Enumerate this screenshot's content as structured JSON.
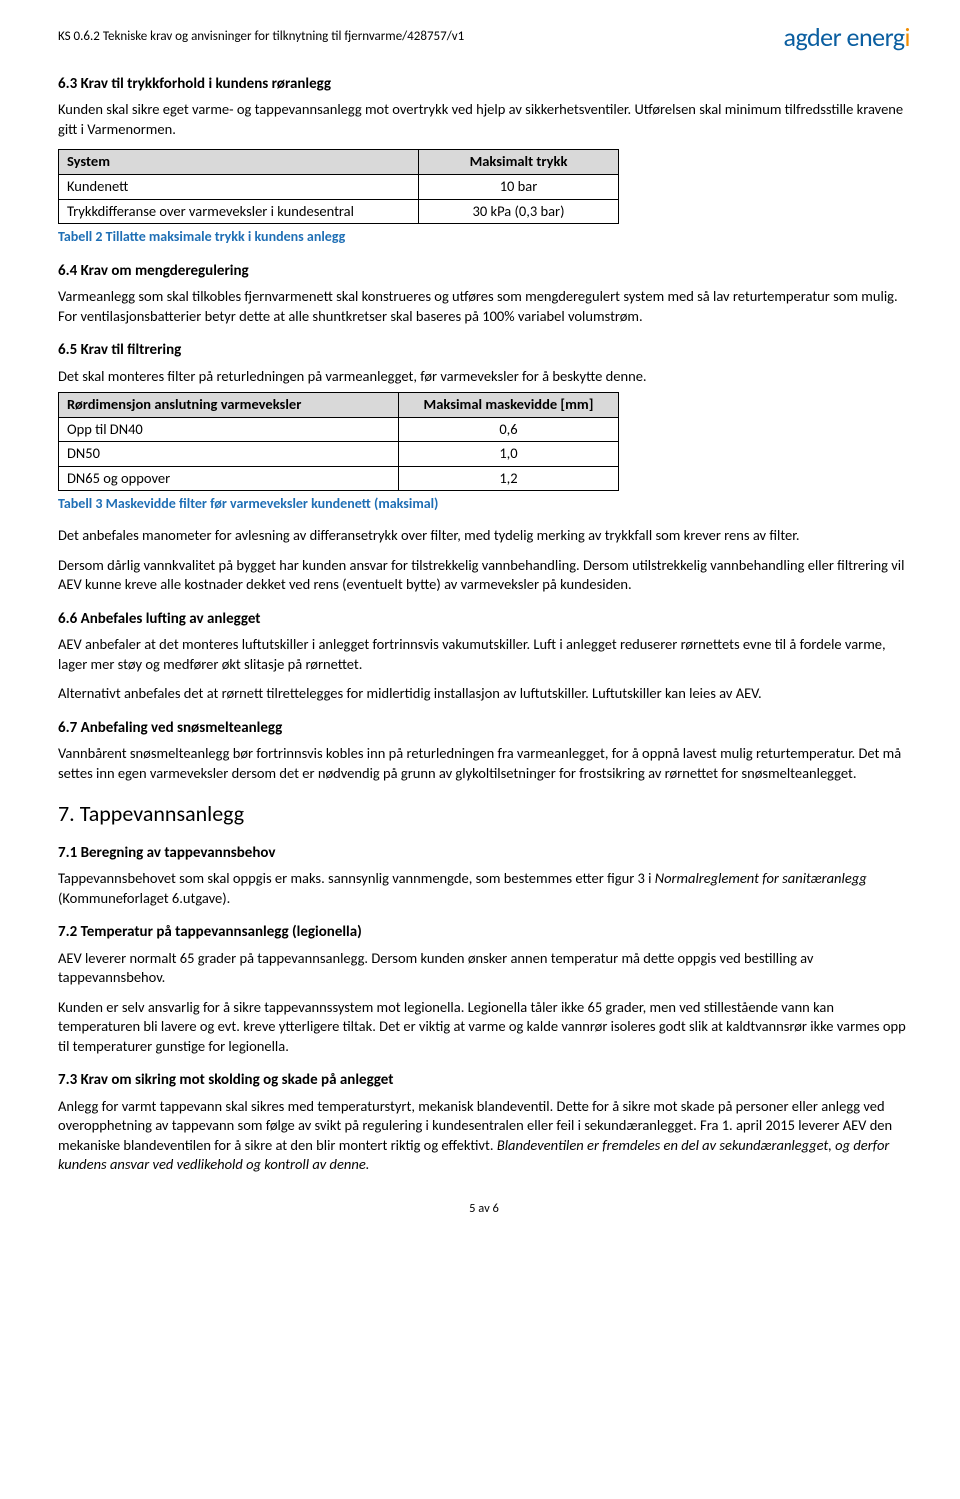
{
  "header": {
    "doc_ref": "KS 0.6.2 Tekniske krav og anvisninger for tilknytning til fjernvarme/428757/v1",
    "logo_part1": "agder",
    "logo_part2": " energ",
    "logo_accent": "i"
  },
  "s63": {
    "title": "6.3 Krav til trykkforhold i kundens røranlegg",
    "p1": "Kunden skal sikre eget varme- og tappevannsanlegg mot overtrykk ved hjelp av sikkerhetsventiler. Utførelsen skal minimum tilfredsstille kravene gitt i Varmenormen.",
    "table": {
      "h1": "System",
      "h2": "Maksimalt trykk",
      "r1c1": "Kundenett",
      "r1c2": "10 bar",
      "r2c1": "Trykkdifferanse over varmeveksler i kundesentral",
      "r2c2": "30 kPa (0,3 bar)"
    },
    "caption": "Tabell 2 Tillatte maksimale trykk i kundens anlegg"
  },
  "s64": {
    "title": "6.4 Krav om mengderegulering",
    "p1": "Varmeanlegg som skal tilkobles fjernvarmenett skal konstrueres og utføres som mengderegulert system med så lav returtemperatur som mulig. For ventilasjonsbatterier betyr dette at alle shuntkretser skal baseres på 100% variabel volumstrøm."
  },
  "s65": {
    "title": "6.5 Krav til filtrering",
    "p1": "Det skal monteres filter på returledningen på varmeanlegget, før varmeveksler for å beskytte denne.",
    "table": {
      "h1": "Rørdimensjon anslutning varmeveksler",
      "h2": "Maksimal maskevidde [mm]",
      "r1c1": "Opp til DN40",
      "r1c2": "0,6",
      "r2c1": "DN50",
      "r2c2": "1,0",
      "r3c1": "DN65 og oppover",
      "r3c2": "1,2"
    },
    "caption": "Tabell 3 Maskevidde filter før varmeveksler kundenett (maksimal)",
    "p2": "Det anbefales manometer for avlesning av differansetrykk over filter, med tydelig merking av trykkfall som krever rens av filter.",
    "p3": "Dersom dårlig vannkvalitet på bygget har kunden ansvar for tilstrekkelig vannbehandling. Dersom utilstrekkelig vannbehandling eller filtrering vil AEV kunne kreve alle kostnader dekket ved rens (eventuelt bytte) av varmeveksler på kundesiden."
  },
  "s66": {
    "title": "6.6 Anbefales lufting av anlegget",
    "p1": "AEV anbefaler at det monteres luftutskiller i anlegget fortrinnsvis vakumutskiller. Luft i anlegget reduserer rørnettets evne til å fordele varme, lager mer støy og medfører økt slitasje på rørnettet.",
    "p2": "Alternativt anbefales det at rørnett tilrettelegges for midlertidig installasjon av luftutskiller. Luftutskiller kan leies av AEV."
  },
  "s67": {
    "title": "6.7 Anbefaling ved snøsmelteanlegg",
    "p1": "Vannbårent snøsmelteanlegg bør fortrinnsvis kobles inn på returledningen fra varmeanlegget, for å oppnå lavest mulig returtemperatur. Det må settes inn egen varmeveksler dersom det er nødvendig på grunn av glykoltilsetninger for frostsikring av rørnettet for snøsmelteanlegget."
  },
  "s7": {
    "num": "7.",
    "title": "Tappevannsanlegg"
  },
  "s71": {
    "title": "7.1 Beregning av tappevannsbehov",
    "p1a": "Tappevannsbehovet som skal oppgis er maks. sannsynlig vannmengde, som bestemmes etter figur 3 i ",
    "p1b": "Normalreglement for sanitæranlegg",
    "p1c": " (Kommuneforlaget 6.utgave)."
  },
  "s72": {
    "title": "7.2 Temperatur på tappevannsanlegg (legionella)",
    "p1": "AEV leverer normalt 65 grader på tappevannsanlegg. Dersom kunden ønsker annen temperatur må dette oppgis ved bestilling av tappevannsbehov.",
    "p2": "Kunden er selv ansvarlig for å sikre tappevannssystem mot legionella. Legionella tåler ikke 65 grader, men ved stillestående vann kan temperaturen bli lavere og evt. kreve ytterligere tiltak. Det er viktig at varme og kalde vannrør isoleres godt slik at kaldtvannsrør ikke varmes opp til temperaturer gunstige for legionella."
  },
  "s73": {
    "title": "7.3 Krav om sikring mot skolding og skade på anlegget",
    "p1a": "Anlegg for varmt tappevann skal sikres med temperaturstyrt, mekanisk blandeventil. Dette for å sikre mot skade på personer eller anlegg ved overopphetning av tappevann som følge av svikt på regulering i kundesentralen eller feil i sekundæranlegget. Fra 1. april 2015 leverer AEV den mekaniske blandeventilen for å sikre at den blir montert riktig og effektivt. ",
    "p1b": "Blandeventilen er fremdeles en del av sekundæranlegget, og derfor kundens ansvar ved vedlikehold og kontroll av denne."
  },
  "footer": {
    "page": "5 av 6"
  }
}
